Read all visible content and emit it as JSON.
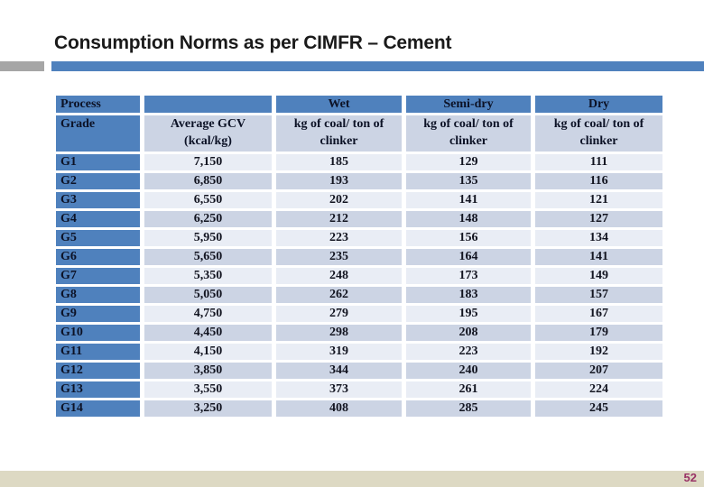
{
  "slide": {
    "title": "Consumption Norms as per CIMFR – Cement",
    "page_number": "52"
  },
  "colors": {
    "header_blue": "#4f81bd",
    "stripe_light": "#e9edf5",
    "stripe_dark": "#ccd4e4",
    "title_bar_gray": "#a6a6a6",
    "title_bar_blue": "#4f81bd",
    "footer_bg": "#ddd9c3",
    "page_number_color": "#993366"
  },
  "table": {
    "header": {
      "col1_line1": "Process",
      "col1_line2": "Grade",
      "col2_line1": "Average GCV",
      "col2_line2": "(kcal/kg)",
      "wet_label": "Wet",
      "semidry_label": "Semi-dry",
      "dry_label": "Dry",
      "unit_line1": "kg of coal/ ton of",
      "unit_line2": "clinker"
    },
    "rows": [
      {
        "grade": "G1",
        "gcv": "7,150",
        "wet": "185",
        "semidry": "129",
        "dry": "111"
      },
      {
        "grade": "G2",
        "gcv": "6,850",
        "wet": "193",
        "semidry": "135",
        "dry": "116"
      },
      {
        "grade": "G3",
        "gcv": "6,550",
        "wet": "202",
        "semidry": "141",
        "dry": "121"
      },
      {
        "grade": "G4",
        "gcv": "6,250",
        "wet": "212",
        "semidry": "148",
        "dry": "127"
      },
      {
        "grade": "G5",
        "gcv": "5,950",
        "wet": "223",
        "semidry": "156",
        "dry": "134"
      },
      {
        "grade": "G6",
        "gcv": "5,650",
        "wet": "235",
        "semidry": "164",
        "dry": "141"
      },
      {
        "grade": "G7",
        "gcv": "5,350",
        "wet": "248",
        "semidry": "173",
        "dry": "149"
      },
      {
        "grade": "G8",
        "gcv": "5,050",
        "wet": "262",
        "semidry": "183",
        "dry": "157"
      },
      {
        "grade": "G9",
        "gcv": "4,750",
        "wet": "279",
        "semidry": "195",
        "dry": "167"
      },
      {
        "grade": "G10",
        "gcv": "4,450",
        "wet": "298",
        "semidry": "208",
        "dry": "179"
      },
      {
        "grade": "G11",
        "gcv": "4,150",
        "wet": "319",
        "semidry": "223",
        "dry": "192"
      },
      {
        "grade": "G12",
        "gcv": "3,850",
        "wet": "344",
        "semidry": "240",
        "dry": "207"
      },
      {
        "grade": "G13",
        "gcv": "3,550",
        "wet": "373",
        "semidry": "261",
        "dry": "224"
      },
      {
        "grade": "G14",
        "gcv": "3,250",
        "wet": "408",
        "semidry": "285",
        "dry": "245"
      }
    ]
  }
}
